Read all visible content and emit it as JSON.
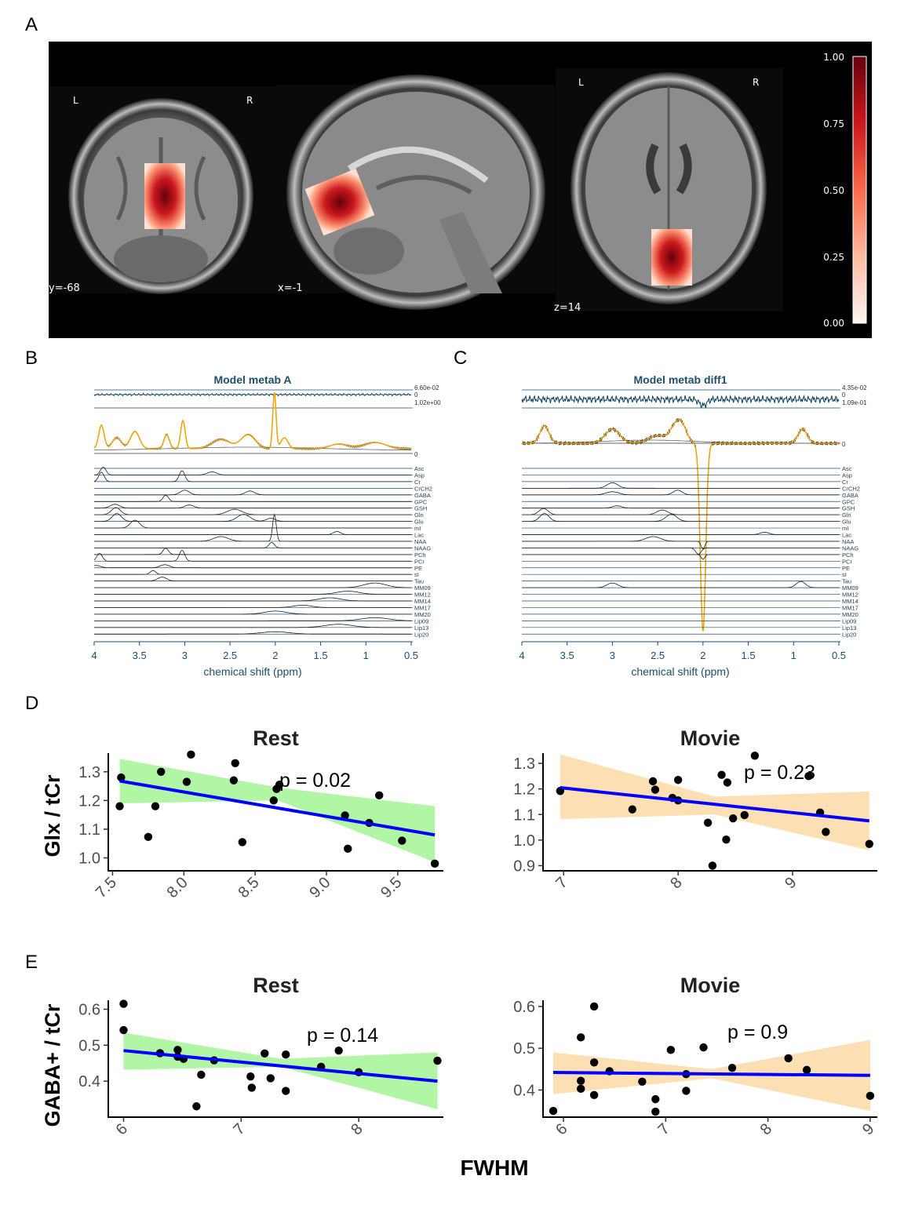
{
  "panel_letters": [
    "A",
    "B",
    "C",
    "D",
    "E"
  ],
  "panel_a": {
    "coronal": {
      "orient_left": "L",
      "orient_right": "R",
      "coord": "y=-68"
    },
    "sagittal": {
      "coord": "x=-1"
    },
    "axial": {
      "orient_left": "L",
      "orient_right": "R",
      "coord": "z=14"
    },
    "colorbar_ticks": [
      "1.00",
      "0.75",
      "0.50",
      "0.25",
      "0.00"
    ],
    "colors": {
      "low": "#fff5f0",
      "mid": "#f03b20",
      "high": "#67000d"
    }
  },
  "panel_b": {
    "title": "Model metab A",
    "xlabel": "chemical shift (ppm)",
    "xticks": [
      "4",
      "3.5",
      "3",
      "2.5",
      "2",
      "1.5",
      "1",
      "0.5"
    ],
    "residual_max": "6.60e-02",
    "residual_zero": "0",
    "fit_max": "1.02e+00",
    "fit_zero": "0",
    "metabolites": [
      "Asc",
      "Asp",
      "Cr",
      "CrCH2",
      "GABA",
      "GPC",
      "GSH",
      "Gln",
      "Glu",
      "mI",
      "Lac",
      "NAA",
      "NAAG",
      "PCh",
      "PCr",
      "PE",
      "sI",
      "Tau",
      "MM09",
      "MM12",
      "MM14",
      "MM17",
      "MM20",
      "Lip09",
      "Lip13",
      "Lip20"
    ]
  },
  "panel_c": {
    "title": "Model metab diff1",
    "xlabel": "chemical shift (ppm)",
    "xticks": [
      "4",
      "3.5",
      "3",
      "2.5",
      "2",
      "1.5",
      "1",
      "0.5"
    ],
    "residual_max": "4.35e-02",
    "residual_zero": "0",
    "fit_max": "1.09e-01",
    "fit_zero": "0",
    "metabolites": [
      "Asc",
      "Asp",
      "Cr",
      "CrCH2",
      "GABA",
      "GPC",
      "GSH",
      "Gln",
      "Glu",
      "mI",
      "Lac",
      "NAA",
      "NAAG",
      "PCh",
      "PCr",
      "PE",
      "sI",
      "Tau",
      "MM09",
      "MM12",
      "MM14",
      "MM17",
      "MM20",
      "Lip09",
      "Lip13",
      "Lip20"
    ]
  },
  "shared_xlabel": "FWHM",
  "row_ylabels": {
    "D": "Glx / tCr",
    "E": "GABA+ / tCr"
  },
  "colors": {
    "rest_band": "#adf5a0",
    "movie_band": "#fcd9a4",
    "fit_line": "#0000ff",
    "point": "#000000"
  },
  "chart_data": [
    {
      "type": "scatter",
      "title": "Rest",
      "ylabel": "Glx / tCr",
      "annotation": "p =  0.02",
      "xlim": [
        7.47,
        9.82
      ],
      "ylim": [
        0.955,
        1.365
      ],
      "xticks": [
        "7.5",
        "8.0",
        "8.5",
        "9.0",
        "9.5"
      ],
      "yticks": [
        "1.0",
        "1.1",
        "1.2",
        "1.3"
      ],
      "fit": {
        "x": [
          7.55,
          9.76
        ],
        "y": [
          1.268,
          1.08
        ]
      },
      "band": {
        "x": [
          7.55,
          8.66,
          9.76
        ],
        "upper": [
          1.345,
          1.245,
          1.18
        ],
        "lower": [
          1.19,
          1.2,
          0.985
        ]
      },
      "points": [
        {
          "x": 7.56,
          "y": 1.28
        },
        {
          "x": 7.55,
          "y": 1.18
        },
        {
          "x": 7.75,
          "y": 1.073
        },
        {
          "x": 7.8,
          "y": 1.18
        },
        {
          "x": 7.84,
          "y": 1.3
        },
        {
          "x": 8.02,
          "y": 1.265
        },
        {
          "x": 8.05,
          "y": 1.36
        },
        {
          "x": 8.35,
          "y": 1.27
        },
        {
          "x": 8.36,
          "y": 1.33
        },
        {
          "x": 8.41,
          "y": 1.055
        },
        {
          "x": 8.63,
          "y": 1.2
        },
        {
          "x": 8.65,
          "y": 1.24
        },
        {
          "x": 8.67,
          "y": 1.255
        },
        {
          "x": 9.13,
          "y": 1.148
        },
        {
          "x": 9.15,
          "y": 1.032
        },
        {
          "x": 9.3,
          "y": 1.122
        },
        {
          "x": 9.37,
          "y": 1.218
        },
        {
          "x": 9.53,
          "y": 1.06
        },
        {
          "x": 9.76,
          "y": 0.98
        }
      ]
    },
    {
      "type": "scatter",
      "title": "Movie",
      "annotation": "p =  0.23",
      "xlim": [
        6.82,
        9.74
      ],
      "ylim": [
        0.88,
        1.34
      ],
      "xticks": [
        "7",
        "8",
        "9"
      ],
      "yticks": [
        "0.9",
        "1.0",
        "1.1",
        "1.2",
        "1.3"
      ],
      "fit": {
        "x": [
          6.97,
          9.67
        ],
        "y": [
          1.205,
          1.075
        ]
      },
      "band": {
        "x": [
          6.97,
          8.32,
          9.67
        ],
        "upper": [
          1.335,
          1.17,
          1.19
        ],
        "lower": [
          1.082,
          1.1,
          0.96
        ]
      },
      "points": [
        {
          "x": 6.97,
          "y": 1.192
        },
        {
          "x": 7.6,
          "y": 1.12
        },
        {
          "x": 7.78,
          "y": 1.23
        },
        {
          "x": 7.8,
          "y": 1.197
        },
        {
          "x": 7.95,
          "y": 1.165
        },
        {
          "x": 8.0,
          "y": 1.155
        },
        {
          "x": 8.0,
          "y": 1.235
        },
        {
          "x": 8.26,
          "y": 1.068
        },
        {
          "x": 8.3,
          "y": 0.9
        },
        {
          "x": 8.38,
          "y": 1.255
        },
        {
          "x": 8.42,
          "y": 1.002
        },
        {
          "x": 8.43,
          "y": 1.225
        },
        {
          "x": 8.48,
          "y": 1.085
        },
        {
          "x": 8.58,
          "y": 1.098
        },
        {
          "x": 8.67,
          "y": 1.33
        },
        {
          "x": 9.14,
          "y": 1.25
        },
        {
          "x": 9.24,
          "y": 1.108
        },
        {
          "x": 9.29,
          "y": 1.032
        },
        {
          "x": 9.67,
          "y": 0.985
        }
      ]
    },
    {
      "type": "scatter",
      "title": "Rest",
      "ylabel": "GABA+ / tCr",
      "annotation": "p =  0.14",
      "xlim": [
        5.87,
        8.72
      ],
      "ylim": [
        0.3,
        0.625
      ],
      "xticks": [
        "6",
        "7",
        "8"
      ],
      "yticks": [
        "0.4",
        "0.5",
        "0.6"
      ],
      "fit": {
        "x": [
          6.0,
          8.67
        ],
        "y": [
          0.485,
          0.4
        ]
      },
      "band": {
        "x": [
          6.0,
          7.34,
          8.67
        ],
        "upper": [
          0.535,
          0.462,
          0.48
        ],
        "lower": [
          0.432,
          0.44,
          0.322
        ]
      },
      "points": [
        {
          "x": 6.0,
          "y": 0.615
        },
        {
          "x": 6.0,
          "y": 0.542
        },
        {
          "x": 6.31,
          "y": 0.478
        },
        {
          "x": 6.46,
          "y": 0.487
        },
        {
          "x": 6.46,
          "y": 0.468
        },
        {
          "x": 6.51,
          "y": 0.462
        },
        {
          "x": 6.62,
          "y": 0.33
        },
        {
          "x": 6.66,
          "y": 0.418
        },
        {
          "x": 6.77,
          "y": 0.458
        },
        {
          "x": 7.08,
          "y": 0.413
        },
        {
          "x": 7.09,
          "y": 0.382
        },
        {
          "x": 7.2,
          "y": 0.477
        },
        {
          "x": 7.25,
          "y": 0.408
        },
        {
          "x": 7.38,
          "y": 0.474
        },
        {
          "x": 7.38,
          "y": 0.373
        },
        {
          "x": 7.68,
          "y": 0.44
        },
        {
          "x": 7.83,
          "y": 0.485
        },
        {
          "x": 8.0,
          "y": 0.425
        },
        {
          "x": 8.67,
          "y": 0.457
        }
      ]
    },
    {
      "type": "scatter",
      "title": "Movie",
      "annotation": "p =  0.9",
      "xlim": [
        5.8,
        9.07
      ],
      "ylim": [
        0.335,
        0.615
      ],
      "xticks": [
        "6",
        "7",
        "8",
        "9"
      ],
      "yticks": [
        "0.4",
        "0.5",
        "0.6"
      ],
      "fit": {
        "x": [
          5.9,
          9.0
        ],
        "y": [
          0.442,
          0.435
        ]
      },
      "band": {
        "x": [
          5.9,
          7.45,
          9.0
        ],
        "upper": [
          0.49,
          0.45,
          0.52
        ],
        "lower": [
          0.39,
          0.428,
          0.35
        ]
      },
      "points": [
        {
          "x": 5.9,
          "y": 0.35
        },
        {
          "x": 6.17,
          "y": 0.526
        },
        {
          "x": 6.17,
          "y": 0.422
        },
        {
          "x": 6.17,
          "y": 0.403
        },
        {
          "x": 6.3,
          "y": 0.6
        },
        {
          "x": 6.3,
          "y": 0.466
        },
        {
          "x": 6.3,
          "y": 0.388
        },
        {
          "x": 6.45,
          "y": 0.445
        },
        {
          "x": 6.77,
          "y": 0.42
        },
        {
          "x": 6.9,
          "y": 0.378
        },
        {
          "x": 6.9,
          "y": 0.348
        },
        {
          "x": 7.05,
          "y": 0.496
        },
        {
          "x": 7.2,
          "y": 0.438
        },
        {
          "x": 7.2,
          "y": 0.398
        },
        {
          "x": 7.37,
          "y": 0.502
        },
        {
          "x": 7.65,
          "y": 0.453
        },
        {
          "x": 8.2,
          "y": 0.476
        },
        {
          "x": 8.38,
          "y": 0.448
        },
        {
          "x": 9.0,
          "y": 0.386
        }
      ]
    }
  ]
}
